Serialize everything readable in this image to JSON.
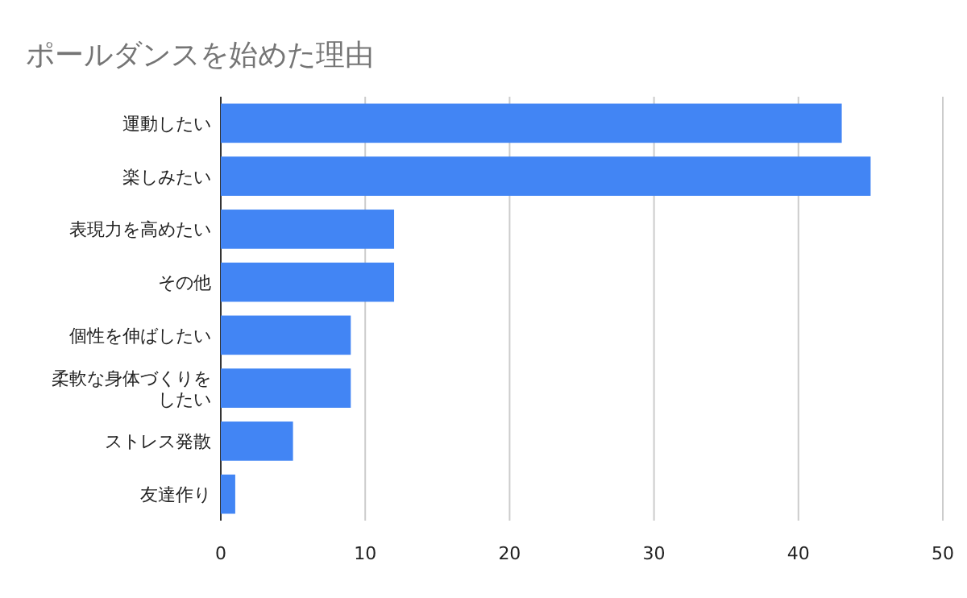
{
  "chart_data": {
    "type": "bar",
    "orientation": "horizontal",
    "title": "ポールダンスを始めた理由",
    "categories": [
      "運動したい",
      "楽しみたい",
      "表現力を高めたい",
      "その他",
      "個性を伸ばしたい",
      "柔軟な身体づくりをしたい",
      "ストレス発散",
      "友達作り"
    ],
    "values": [
      43,
      45,
      12,
      12,
      9,
      9,
      5,
      1
    ],
    "color": "#4285f4",
    "xlim": [
      0,
      50
    ],
    "xticks": [
      0,
      10,
      20,
      30,
      40,
      50
    ],
    "grid": "x"
  }
}
